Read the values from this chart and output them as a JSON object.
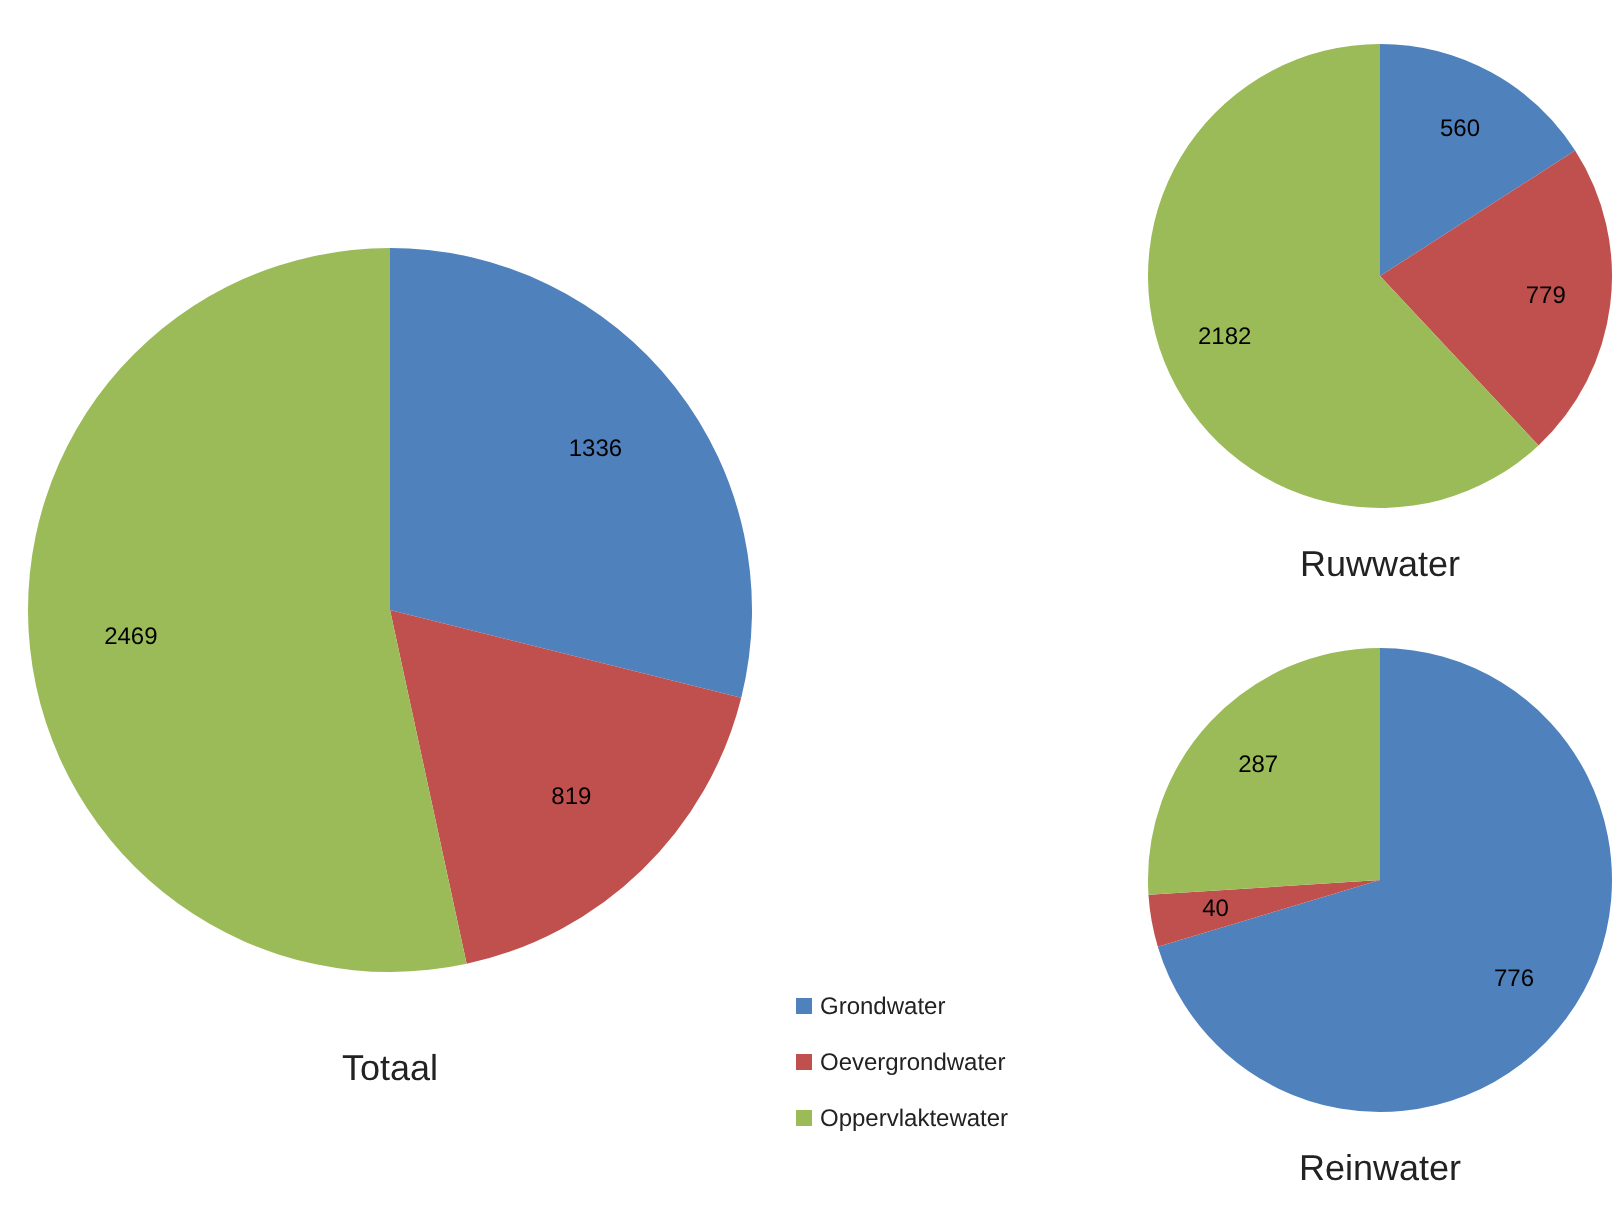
{
  "chart_data": [
    {
      "type": "pie",
      "title": "Totaal",
      "categories": [
        "Grondwater",
        "Oevergrondwater",
        "Oppervlaktewater"
      ],
      "values": [
        1336,
        819,
        2469
      ],
      "colors": [
        "#4f81bd",
        "#c0504d",
        "#9bbb59"
      ],
      "data_labels": true,
      "legend": "bottom right"
    },
    {
      "type": "pie",
      "title": "Ruwwater",
      "categories": [
        null,
        null,
        null
      ],
      "values": [
        560,
        779,
        2182
      ],
      "colors": [
        "#4f81bd",
        "#c0504d",
        "#9bbb59"
      ],
      "data_labels": true
    },
    {
      "type": "pie",
      "title": "Reinwater",
      "categories": [
        null,
        null,
        null
      ],
      "values": [
        776,
        40,
        287
      ],
      "colors": [
        "#4f81bd",
        "#c0504d",
        "#9bbb59"
      ],
      "data_labels": true
    }
  ]
}
